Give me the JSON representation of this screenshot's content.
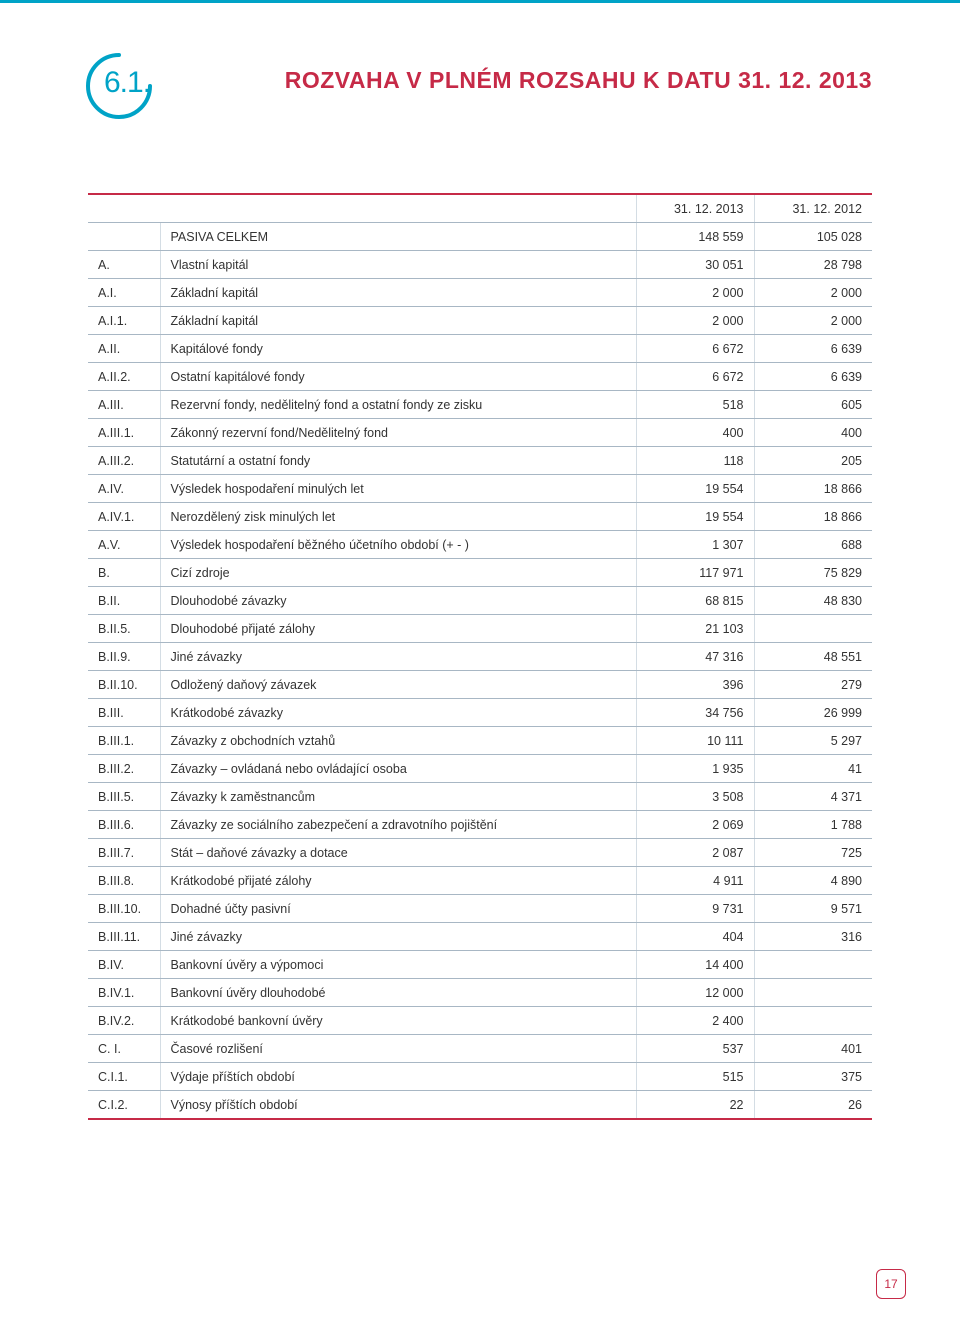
{
  "colors": {
    "accent_blue": "#00a3c7",
    "accent_red": "#c62a47",
    "rule_gray": "#a8b7c4",
    "vline_gray": "#d4dde4",
    "text": "#333333",
    "background": "#ffffff"
  },
  "typography": {
    "body_fontsize_pt": 9,
    "title_fontsize_pt": 17,
    "section_num_fontsize_pt": 22,
    "font_family": "Arial"
  },
  "section_number": "6.1.",
  "page_title": "ROZVAHA V PLNÉM ROZSAHU K DATU 31. 12. 2013",
  "page_number": "17",
  "table": {
    "header": {
      "blank1": "",
      "blank2": "",
      "col1": "31. 12. 2013",
      "col2": "31. 12. 2012"
    },
    "col_align": [
      "left",
      "left",
      "right",
      "right"
    ],
    "rows": [
      {
        "code": "",
        "label": "PASIVA CELKEM",
        "v1": "148 559",
        "v2": "105 028"
      },
      {
        "code": "A.",
        "label": "Vlastní kapitál",
        "v1": "30 051",
        "v2": "28 798"
      },
      {
        "code": "A.I.",
        "label": "Základní kapitál",
        "v1": "2 000",
        "v2": "2 000"
      },
      {
        "code": "A.I.1.",
        "label": "Základní kapitál",
        "v1": "2 000",
        "v2": "2 000"
      },
      {
        "code": "A.II.",
        "label": "Kapitálové fondy",
        "v1": "6 672",
        "v2": "6 639"
      },
      {
        "code": "A.II.2.",
        "label": "Ostatní kapitálové fondy",
        "v1": "6 672",
        "v2": "6 639"
      },
      {
        "code": "A.III.",
        "label": "Rezervní fondy, nedělitelný fond a ostatní fondy ze zisku",
        "v1": "518",
        "v2": "605"
      },
      {
        "code": "A.III.1.",
        "label": "Zákonný rezervní fond/Nedělitelný fond",
        "v1": "400",
        "v2": "400"
      },
      {
        "code": "A.III.2.",
        "label": "Statutární a ostatní fondy",
        "v1": "118",
        "v2": "205"
      },
      {
        "code": "A.IV.",
        "label": "Výsledek hospodaření minulých let",
        "v1": "19 554",
        "v2": "18 866"
      },
      {
        "code": "A.IV.1.",
        "label": "Nerozdělený zisk minulých let",
        "v1": "19 554",
        "v2": "18 866"
      },
      {
        "code": "A.V.",
        "label": "Výsledek hospodaření běžného účetního období (+ - )",
        "v1": "1 307",
        "v2": "688"
      },
      {
        "code": "B.",
        "label": "Cizí zdroje",
        "v1": "117 971",
        "v2": "75 829"
      },
      {
        "code": "B.II.",
        "label": "Dlouhodobé závazky",
        "v1": "68 815",
        "v2": "48 830"
      },
      {
        "code": "B.II.5.",
        "label": "Dlouhodobé přijaté zálohy",
        "v1": "21 103",
        "v2": ""
      },
      {
        "code": "B.II.9.",
        "label": "Jiné závazky",
        "v1": "47 316",
        "v2": "48 551"
      },
      {
        "code": "B.II.10.",
        "label": "Odložený daňový závazek",
        "v1": "396",
        "v2": "279"
      },
      {
        "code": "B.III.",
        "label": "Krátkodobé závazky",
        "v1": "34 756",
        "v2": "26 999"
      },
      {
        "code": "B.III.1.",
        "label": "Závazky z obchodních vztahů",
        "v1": "10 111",
        "v2": "5 297"
      },
      {
        "code": "B.III.2.",
        "label": "Závazky – ovládaná nebo ovládající osoba",
        "v1": "1 935",
        "v2": "41"
      },
      {
        "code": "B.III.5.",
        "label": "Závazky k zaměstnancům",
        "v1": "3 508",
        "v2": "4 371"
      },
      {
        "code": "B.III.6.",
        "label": "Závazky ze sociálního zabezpečení a zdravotního pojištění",
        "v1": "2 069",
        "v2": "1 788"
      },
      {
        "code": "B.III.7.",
        "label": "Stát – daňové závazky a dotace",
        "v1": "2 087",
        "v2": "725"
      },
      {
        "code": "B.III.8.",
        "label": "Krátkodobé přijaté zálohy",
        "v1": "4 911",
        "v2": "4 890"
      },
      {
        "code": "B.III.10.",
        "label": "Dohadné účty pasivní",
        "v1": "9 731",
        "v2": "9 571"
      },
      {
        "code": "B.III.11.",
        "label": "Jiné závazky",
        "v1": "404",
        "v2": "316"
      },
      {
        "code": "B.IV.",
        "label": "Bankovní úvěry a výpomoci",
        "v1": "14 400",
        "v2": ""
      },
      {
        "code": "B.IV.1.",
        "label": "Bankovní úvěry dlouhodobé",
        "v1": "12 000",
        "v2": ""
      },
      {
        "code": "B.IV.2.",
        "label": "Krátkodobé bankovní úvěry",
        "v1": "2 400",
        "v2": ""
      },
      {
        "code": "C. I.",
        "label": "Časové rozlišení",
        "v1": "537",
        "v2": "401"
      },
      {
        "code": "C.I.1.",
        "label": "Výdaje příštích období",
        "v1": "515",
        "v2": "375"
      },
      {
        "code": "C.I.2.",
        "label": "Výnosy příštích období",
        "v1": "22",
        "v2": "26"
      }
    ]
  }
}
